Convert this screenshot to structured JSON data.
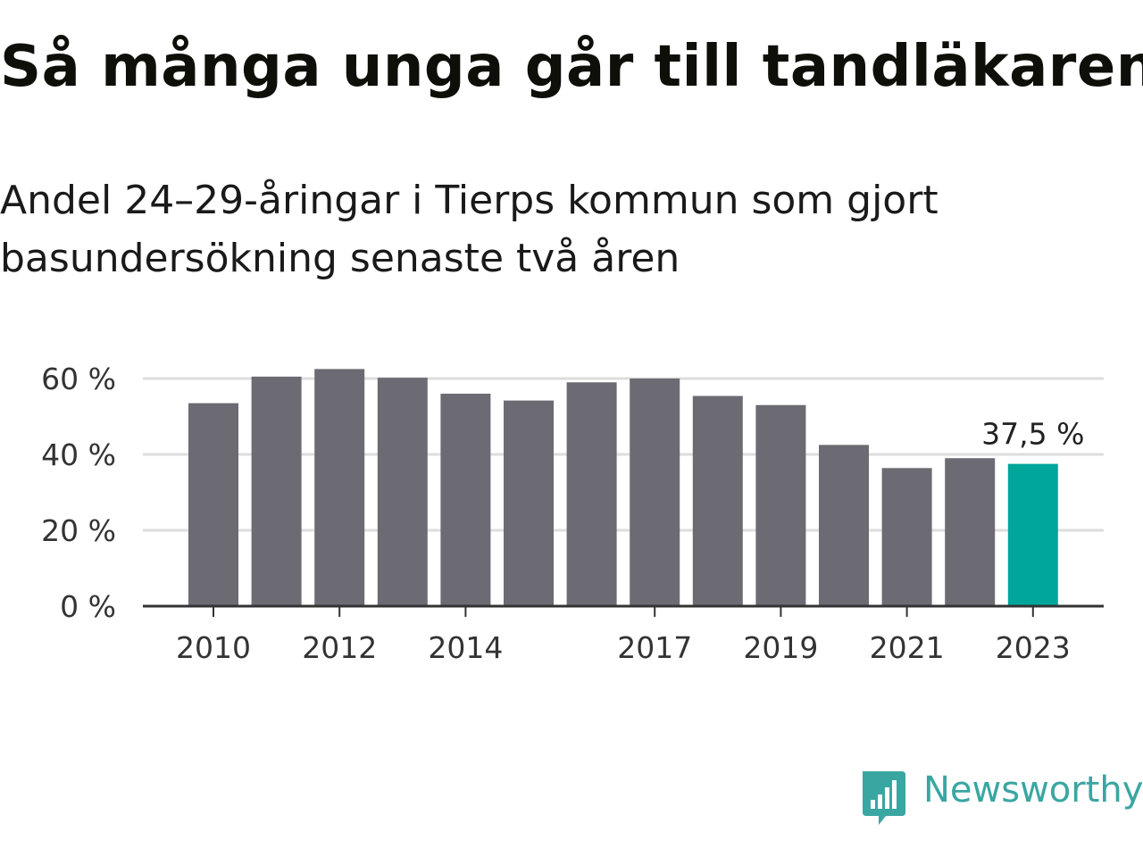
{
  "title": "Så många unga går till tandläkaren",
  "subtitle": "Andel 24–29-åringar i Tierps kommun som gjort basundersökning senaste två åren",
  "brand": {
    "name": "Newsworthy",
    "icon": "newsworthy-bar-chart-bubble-icon",
    "color": "#3aa6a2"
  },
  "colors": {
    "bar": "#6c6b73",
    "highlight": "#00a69a",
    "grid": "#dddddd",
    "axis": "#333333",
    "text": "#333333"
  },
  "chart_data": {
    "type": "bar",
    "categories": [
      "2010",
      "2011",
      "2012",
      "2013",
      "2014",
      "2015",
      "2016",
      "2017",
      "2018",
      "2019",
      "2020",
      "2021",
      "2022",
      "2023"
    ],
    "tick_labels": [
      "2010",
      "",
      "2012",
      "",
      "2014",
      "",
      "",
      "2017",
      "",
      "2019",
      "",
      "2021",
      "",
      "2023"
    ],
    "values": [
      53.5,
      60.5,
      62.5,
      60.2,
      56,
      54.2,
      59,
      60,
      55.4,
      53,
      42.5,
      36.4,
      39,
      37.5
    ],
    "highlight_index": 13,
    "annotation": "37,5 %",
    "yticks": [
      "0 %",
      "20 %",
      "40 %",
      "60 %"
    ],
    "ytick_values": [
      0,
      20,
      40,
      60
    ],
    "ylim": [
      0,
      65
    ],
    "grid": true,
    "xlabel": "",
    "ylabel": ""
  }
}
